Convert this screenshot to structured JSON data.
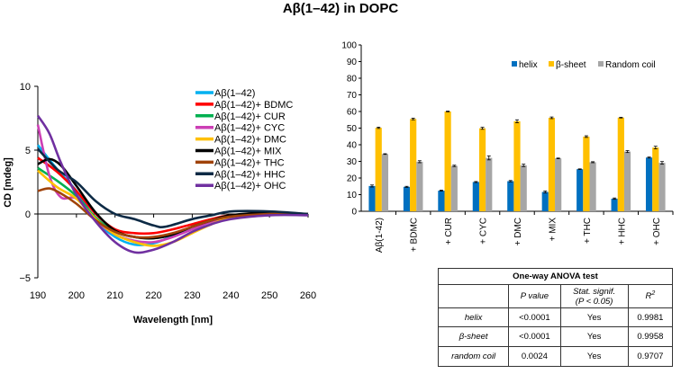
{
  "title": "Aβ(1–42) in DOPC",
  "chart_data": [
    {
      "type": "line",
      "xlabel": "Wavelength [nm]",
      "ylabel": "CD [mdeg]",
      "xlim": [
        190,
        260
      ],
      "ylim": [
        -5,
        10
      ],
      "xticks": [
        "190",
        "200",
        "210",
        "220",
        "230",
        "240",
        "250",
        "260"
      ],
      "yticks": [
        "10",
        "5",
        "0",
        "−5"
      ],
      "legend_position": "top-right",
      "grid": false,
      "series": [
        {
          "name": "Aβ(1–42)",
          "color": "#00b0f0",
          "x": [
            190,
            195,
            200,
            205,
            210,
            215,
            220,
            225,
            230,
            235,
            240,
            250,
            260
          ],
          "y": [
            5.4,
            3.5,
            1.8,
            -0.5,
            -1.8,
            -2.4,
            -2.3,
            -1.7,
            -1.0,
            -0.5,
            -0.2,
            0,
            0
          ]
        },
        {
          "name": "Aβ(1–42)+ BDMC",
          "color": "#ff0000",
          "x": [
            190,
            195,
            200,
            205,
            210,
            215,
            220,
            225,
            230,
            235,
            240,
            250,
            260
          ],
          "y": [
            4.4,
            3.3,
            1.8,
            0,
            -1.2,
            -1.5,
            -1.5,
            -1.2,
            -0.8,
            -0.4,
            -0.1,
            0,
            0
          ]
        },
        {
          "name": "Aβ(1–42)+ CUR",
          "color": "#00b050",
          "x": [
            190,
            195,
            200,
            205,
            210,
            215,
            220,
            225,
            230,
            235,
            240,
            250,
            260
          ],
          "y": [
            3.6,
            2.6,
            1.4,
            -0.3,
            -1.4,
            -1.8,
            -1.9,
            -1.6,
            -1.0,
            -0.5,
            -0.2,
            0,
            0
          ]
        },
        {
          "name": "Aβ(1–42)+ CYC",
          "color": "#cc3fb5",
          "x": [
            190,
            193,
            196,
            200,
            205,
            210,
            215,
            220,
            225,
            230,
            235,
            240,
            250,
            260
          ],
          "y": [
            7,
            3,
            1.3,
            1.2,
            -0.5,
            -1.6,
            -2.1,
            -2.2,
            -1.8,
            -1.2,
            -0.6,
            -0.3,
            -0.1,
            0
          ]
        },
        {
          "name": "Aβ(1–42)+ DMC",
          "color": "#ffc000",
          "x": [
            190,
            195,
            200,
            205,
            210,
            215,
            220,
            225,
            230,
            235,
            240,
            250,
            260
          ],
          "y": [
            3.4,
            2.1,
            1.2,
            -0.4,
            -1.6,
            -2.2,
            -2.5,
            -2.2,
            -1.5,
            -0.8,
            -0.3,
            0,
            0
          ]
        },
        {
          "name": "Aβ(1–42)+ MIX",
          "color": "#000000",
          "x": [
            190,
            193,
            196,
            200,
            205,
            210,
            215,
            220,
            225,
            230,
            235,
            240,
            250,
            260
          ],
          "y": [
            3.9,
            4.3,
            3.8,
            2.2,
            0.1,
            -1.3,
            -1.8,
            -1.9,
            -1.6,
            -1.0,
            -0.5,
            -0.1,
            0.1,
            0
          ]
        },
        {
          "name": "Aβ(1–42)+ THC",
          "color": "#a0430a",
          "x": [
            190,
            193,
            196,
            200,
            205,
            210,
            215,
            220,
            225,
            230,
            235,
            240,
            250,
            260
          ],
          "y": [
            1.8,
            2.0,
            1.6,
            0.8,
            -0.5,
            -1.4,
            -1.8,
            -1.8,
            -1.5,
            -1.0,
            -0.5,
            -0.2,
            0,
            0
          ]
        },
        {
          "name": "Aβ(1–42)+ HHC",
          "color": "#0d2a45",
          "x": [
            190,
            195,
            200,
            205,
            210,
            215,
            220,
            223,
            230,
            235,
            240,
            250,
            260
          ],
          "y": [
            5.1,
            3.5,
            2.5,
            1.0,
            0,
            -0.4,
            -0.9,
            -1.0,
            -0.4,
            -0.1,
            0.2,
            0.2,
            0
          ]
        },
        {
          "name": "Aβ(1–42)+ OHC",
          "color": "#7030a0",
          "x": [
            190,
            193,
            196,
            200,
            205,
            210,
            215,
            220,
            225,
            230,
            235,
            240,
            250,
            260
          ],
          "y": [
            7.7,
            6.3,
            4.0,
            1.5,
            -0.6,
            -2.2,
            -3.0,
            -2.8,
            -2.2,
            -1.4,
            -0.8,
            -0.4,
            -0.1,
            -0.1
          ]
        }
      ]
    },
    {
      "type": "bar",
      "categories": [
        "Aβ(1-42)",
        "+ BDMC",
        "+ CUR",
        "+ CYC",
        "+ DMC",
        "+ MIX",
        "+ THC",
        "+ HHC",
        "+ OHC"
      ],
      "ylim": [
        0,
        100
      ],
      "yticks": [
        "0",
        "10",
        "20",
        "30",
        "40",
        "50",
        "60",
        "70",
        "80",
        "90",
        "100"
      ],
      "legend_position": "top-right",
      "grid": false,
      "series": [
        {
          "name": "helix",
          "color": "#0070c0",
          "values": [
            15.2,
            14.7,
            12.4,
            17.6,
            18.1,
            11.6,
            25.3,
            7.6,
            32.3
          ],
          "errors": [
            0.6,
            0.3,
            0.3,
            0.3,
            0.4,
            0.6,
            0.2,
            0.4,
            0.3
          ]
        },
        {
          "name": "β-sheet",
          "color": "#ffc000",
          "values": [
            50.2,
            55.5,
            60.0,
            49.9,
            54.1,
            56.2,
            44.9,
            56.3,
            38.3
          ],
          "errors": [
            0.4,
            0.5,
            0.2,
            0.6,
            0.9,
            0.5,
            0.5,
            0.2,
            0.8
          ]
        },
        {
          "name": "Random coil",
          "color": "#a6a6a6",
          "values": [
            34.4,
            29.8,
            27.3,
            32.1,
            27.6,
            31.8,
            29.5,
            35.9,
            29.1
          ],
          "errors": [
            0.2,
            0.6,
            0.4,
            1.2,
            0.7,
            0.2,
            0.3,
            0.6,
            0.8
          ]
        }
      ]
    }
  ],
  "table": {
    "title": "One-way ANOVA test",
    "headers": [
      "",
      "P value",
      "Stat. signif.",
      "(P < 0.05)",
      "R",
      "2"
    ],
    "rows": [
      {
        "label": "helix",
        "p": "<0.0001",
        "sig": "Yes",
        "r2": "0.9981"
      },
      {
        "label": "β-sheet",
        "p": "<0.0001",
        "sig": "Yes",
        "r2": "0.9958"
      },
      {
        "label": "random coil",
        "p": "0.0024",
        "sig": "Yes",
        "r2": "0.9707"
      }
    ]
  }
}
